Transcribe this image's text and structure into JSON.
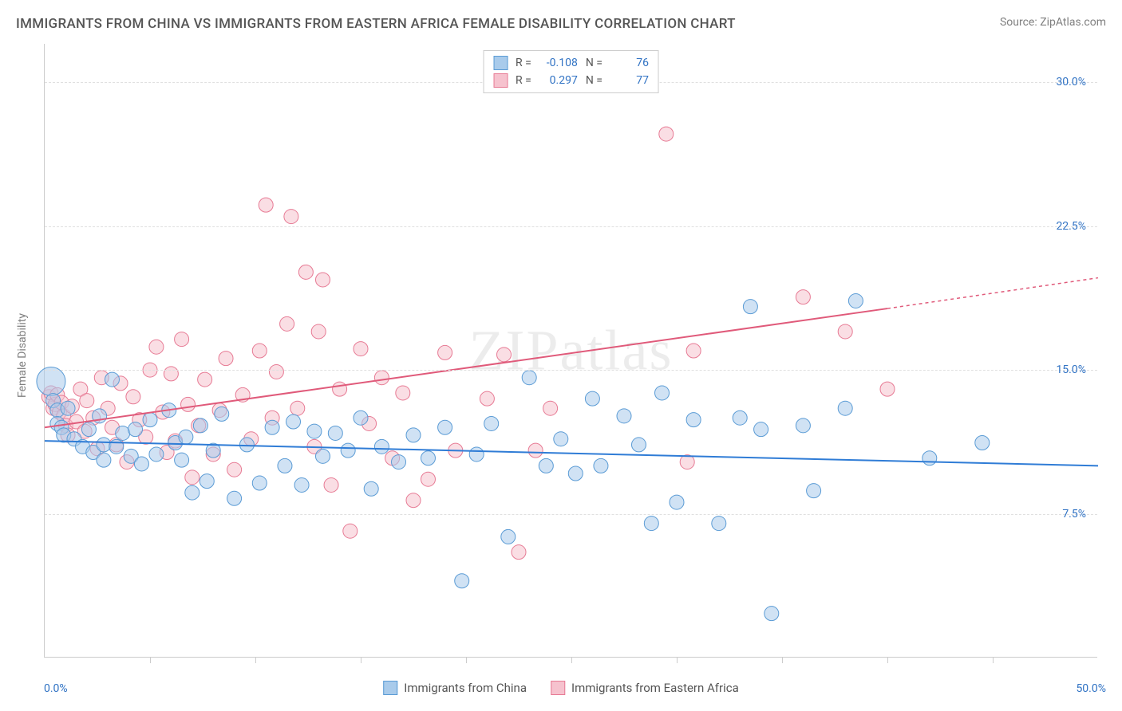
{
  "title": "IMMIGRANTS FROM CHINA VS IMMIGRANTS FROM EASTERN AFRICA FEMALE DISABILITY CORRELATION CHART",
  "source": "Source: ZipAtlas.com",
  "ylabel": "Female Disability",
  "watermark": "ZIPatlas",
  "xlim": [
    0,
    50
  ],
  "ylim": [
    0,
    32
  ],
  "x_start_label": "0.0%",
  "x_end_label": "50.0%",
  "ytick_values": [
    7.5,
    15.0,
    22.5,
    30.0
  ],
  "ytick_labels": [
    "7.5%",
    "15.0%",
    "22.5%",
    "30.0%"
  ],
  "xtick_values": [
    5,
    10,
    15,
    20,
    25,
    30,
    35,
    40,
    45
  ],
  "grid_color": "#e0e0e0",
  "axis_color": "#cccccc",
  "background_color": "#ffffff",
  "tick_label_color": "#3173c4",
  "text_color": "#555555",
  "title_fontsize": 17,
  "label_fontsize": 14,
  "series": [
    {
      "name": "Immigrants from China",
      "fill": "#a9cbeb",
      "stroke": "#5a9bd5",
      "line_color": "#2f7cd6",
      "fill_opacity": 0.55,
      "marker_radius": 9,
      "r_value": "-0.108",
      "n_value": "76",
      "trend": {
        "x1": 0,
        "y1": 11.3,
        "x2": 50,
        "y2": 10.0,
        "dashed_from_x": 50
      },
      "points": [
        [
          0.3,
          14.4,
          18
        ],
        [
          0.4,
          13.4,
          9
        ],
        [
          0.6,
          12.9,
          9
        ],
        [
          0.6,
          12.2,
          9
        ],
        [
          0.8,
          12.0,
          9
        ],
        [
          0.9,
          11.6,
          9
        ],
        [
          1.1,
          13.0,
          9
        ],
        [
          1.4,
          11.4,
          9
        ],
        [
          1.8,
          11.0,
          9
        ],
        [
          2.1,
          11.9,
          9
        ],
        [
          2.3,
          10.7,
          9
        ],
        [
          2.6,
          12.6,
          9
        ],
        [
          2.8,
          11.1,
          9
        ],
        [
          2.8,
          10.3,
          9
        ],
        [
          3.2,
          14.5,
          9
        ],
        [
          3.4,
          11.0,
          9
        ],
        [
          3.7,
          11.7,
          9
        ],
        [
          4.1,
          10.5,
          9
        ],
        [
          4.3,
          11.9,
          9
        ],
        [
          4.6,
          10.1,
          9
        ],
        [
          5.0,
          12.4,
          9
        ],
        [
          5.3,
          10.6,
          9
        ],
        [
          5.9,
          12.9,
          9
        ],
        [
          6.2,
          11.2,
          9
        ],
        [
          6.5,
          10.3,
          9
        ],
        [
          6.7,
          11.5,
          9
        ],
        [
          7.0,
          8.6,
          9
        ],
        [
          7.4,
          12.1,
          9
        ],
        [
          7.7,
          9.2,
          9
        ],
        [
          8.0,
          10.8,
          9
        ],
        [
          8.4,
          12.7,
          9
        ],
        [
          9.0,
          8.3,
          9
        ],
        [
          9.6,
          11.1,
          9
        ],
        [
          10.2,
          9.1,
          9
        ],
        [
          10.8,
          12.0,
          9
        ],
        [
          11.4,
          10.0,
          9
        ],
        [
          11.8,
          12.3,
          9
        ],
        [
          12.2,
          9.0,
          9
        ],
        [
          12.8,
          11.8,
          9
        ],
        [
          13.2,
          10.5,
          9
        ],
        [
          13.8,
          11.7,
          9
        ],
        [
          14.4,
          10.8,
          9
        ],
        [
          15.0,
          12.5,
          9
        ],
        [
          15.5,
          8.8,
          9
        ],
        [
          16.0,
          11.0,
          9
        ],
        [
          16.8,
          10.2,
          9
        ],
        [
          17.5,
          11.6,
          9
        ],
        [
          18.2,
          10.4,
          9
        ],
        [
          19.0,
          12.0,
          9
        ],
        [
          19.8,
          4.0,
          9
        ],
        [
          20.5,
          10.6,
          9
        ],
        [
          21.2,
          12.2,
          9
        ],
        [
          22.0,
          6.3,
          9
        ],
        [
          23.0,
          14.6,
          9
        ],
        [
          23.8,
          10.0,
          9
        ],
        [
          24.5,
          11.4,
          9
        ],
        [
          25.2,
          9.6,
          9
        ],
        [
          26.0,
          13.5,
          9
        ],
        [
          26.4,
          10.0,
          9
        ],
        [
          27.5,
          12.6,
          9
        ],
        [
          28.2,
          11.1,
          9
        ],
        [
          28.8,
          7.0,
          9
        ],
        [
          29.3,
          13.8,
          9
        ],
        [
          30.0,
          8.1,
          9
        ],
        [
          30.8,
          12.4,
          9
        ],
        [
          32.0,
          7.0,
          9
        ],
        [
          33.0,
          12.5,
          9
        ],
        [
          33.5,
          18.3,
          9
        ],
        [
          34.0,
          11.9,
          9
        ],
        [
          34.5,
          2.3,
          9
        ],
        [
          36.0,
          12.1,
          9
        ],
        [
          36.5,
          8.7,
          9
        ],
        [
          38.0,
          13.0,
          9
        ],
        [
          38.5,
          18.6,
          9
        ],
        [
          44.5,
          11.2,
          9
        ],
        [
          42.0,
          10.4,
          9
        ]
      ]
    },
    {
      "name": "Immigrants from Eastern Africa",
      "fill": "#f6c2ce",
      "stroke": "#e77a94",
      "line_color": "#e05a7a",
      "fill_opacity": 0.55,
      "marker_radius": 9,
      "r_value": "0.297",
      "n_value": "77",
      "trend": {
        "x1": 0,
        "y1": 12.0,
        "x2": 40,
        "y2": 18.2,
        "dashed_from_x": 40,
        "dashed_to_x": 50,
        "dashed_to_y": 19.8
      },
      "points": [
        [
          0.2,
          13.6,
          9
        ],
        [
          0.3,
          13.8,
          9
        ],
        [
          0.4,
          13.0,
          9
        ],
        [
          0.5,
          13.2,
          9
        ],
        [
          0.6,
          13.7,
          9
        ],
        [
          0.7,
          12.8,
          9
        ],
        [
          0.8,
          13.3,
          9
        ],
        [
          0.9,
          12.6,
          9
        ],
        [
          1.0,
          12.1,
          9
        ],
        [
          1.1,
          11.6,
          9
        ],
        [
          1.3,
          13.1,
          9
        ],
        [
          1.5,
          12.3,
          9
        ],
        [
          1.7,
          14.0,
          9
        ],
        [
          1.9,
          11.8,
          9
        ],
        [
          2.0,
          13.4,
          9
        ],
        [
          2.3,
          12.5,
          9
        ],
        [
          2.5,
          10.9,
          9
        ],
        [
          2.7,
          14.6,
          9
        ],
        [
          3.0,
          13.0,
          9
        ],
        [
          3.2,
          12.0,
          9
        ],
        [
          3.4,
          11.1,
          9
        ],
        [
          3.6,
          14.3,
          9
        ],
        [
          3.9,
          10.2,
          9
        ],
        [
          4.2,
          13.6,
          9
        ],
        [
          4.5,
          12.4,
          9
        ],
        [
          4.8,
          11.5,
          9
        ],
        [
          5.0,
          15.0,
          9
        ],
        [
          5.3,
          16.2,
          9
        ],
        [
          5.6,
          12.8,
          9
        ],
        [
          5.8,
          10.7,
          9
        ],
        [
          6.0,
          14.8,
          9
        ],
        [
          6.2,
          11.3,
          9
        ],
        [
          6.5,
          16.6,
          9
        ],
        [
          6.8,
          13.2,
          9
        ],
        [
          7.0,
          9.4,
          9
        ],
        [
          7.3,
          12.1,
          9
        ],
        [
          7.6,
          14.5,
          9
        ],
        [
          8.0,
          10.6,
          9
        ],
        [
          8.3,
          12.9,
          9
        ],
        [
          8.6,
          15.6,
          9
        ],
        [
          9.0,
          9.8,
          9
        ],
        [
          9.4,
          13.7,
          9
        ],
        [
          9.8,
          11.4,
          9
        ],
        [
          10.2,
          16.0,
          9
        ],
        [
          10.5,
          23.6,
          9
        ],
        [
          10.8,
          12.5,
          9
        ],
        [
          11.0,
          14.9,
          9
        ],
        [
          11.5,
          17.4,
          9
        ],
        [
          11.7,
          23.0,
          9
        ],
        [
          12.0,
          13.0,
          9
        ],
        [
          12.4,
          20.1,
          9
        ],
        [
          12.8,
          11.0,
          9
        ],
        [
          13.0,
          17.0,
          9
        ],
        [
          13.2,
          19.7,
          9
        ],
        [
          13.6,
          9.0,
          9
        ],
        [
          14.0,
          14.0,
          9
        ],
        [
          14.5,
          6.6,
          9
        ],
        [
          15.0,
          16.1,
          9
        ],
        [
          15.4,
          12.2,
          9
        ],
        [
          16.0,
          14.6,
          9
        ],
        [
          16.5,
          10.4,
          9
        ],
        [
          17.0,
          13.8,
          9
        ],
        [
          17.5,
          8.2,
          9
        ],
        [
          18.2,
          9.3,
          9
        ],
        [
          19.0,
          15.9,
          9
        ],
        [
          19.5,
          10.8,
          9
        ],
        [
          21.0,
          13.5,
          9
        ],
        [
          21.8,
          15.8,
          9
        ],
        [
          22.5,
          5.5,
          9
        ],
        [
          23.3,
          10.8,
          9
        ],
        [
          24.0,
          13.0,
          9
        ],
        [
          29.5,
          27.3,
          9
        ],
        [
          30.5,
          10.2,
          9
        ],
        [
          30.8,
          16.0,
          9
        ],
        [
          36.0,
          18.8,
          9
        ],
        [
          38.0,
          17.0,
          9
        ],
        [
          40.0,
          14.0,
          9
        ]
      ]
    }
  ],
  "legend_bottom_labels": [
    "Immigrants from China",
    "Immigrants from Eastern Africa"
  ],
  "legend_top": {
    "r_label": "R =",
    "n_label": "N ="
  }
}
